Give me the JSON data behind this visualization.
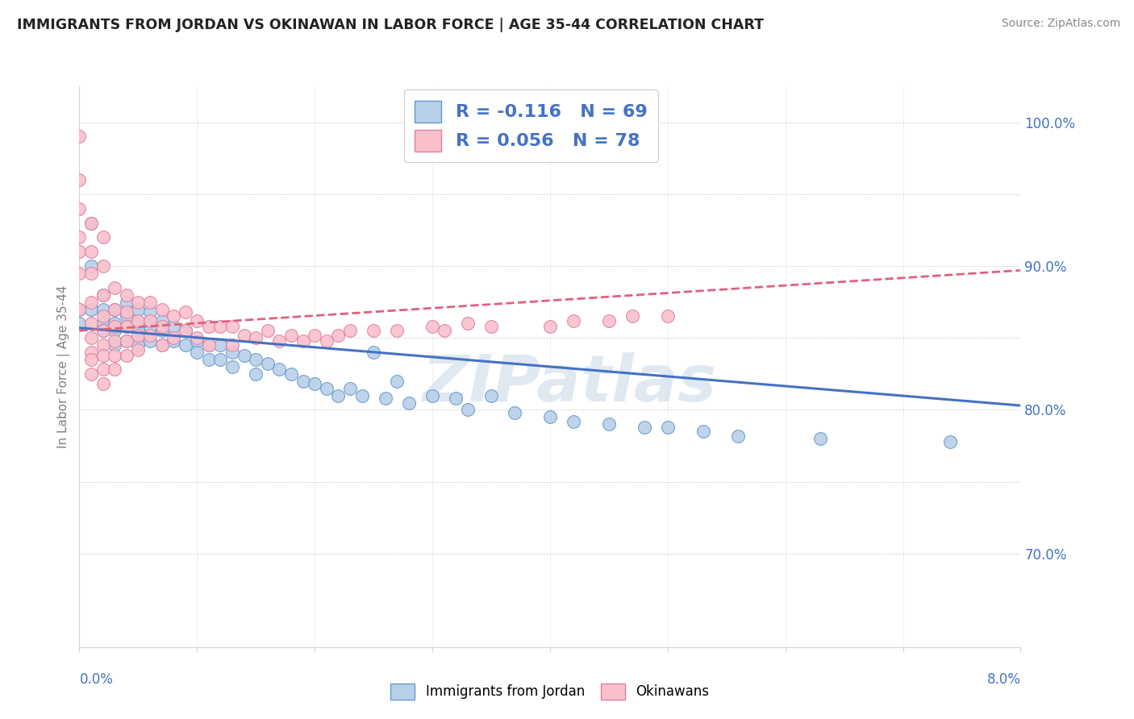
{
  "title": "IMMIGRANTS FROM JORDAN VS OKINAWAN IN LABOR FORCE | AGE 35-44 CORRELATION CHART",
  "source": "Source: ZipAtlas.com",
  "ylabel": "In Labor Force | Age 35-44",
  "watermark": "ZIPatlas",
  "legend_R1": "-0.116",
  "legend_N1": "69",
  "legend_R2": "0.056",
  "legend_N2": "78",
  "blue_color": "#b8d0e8",
  "blue_edge_color": "#6699cc",
  "blue_line_color": "#4472c4",
  "pink_color": "#f9c0cc",
  "pink_edge_color": "#e080a0",
  "pink_line_color": "#e06080",
  "xlim": [
    0.0,
    0.08
  ],
  "ylim": [
    0.635,
    1.025
  ],
  "y_tick_vals": [
    0.7,
    0.8,
    0.9,
    1.0
  ],
  "y_tick_labels": [
    "70.0%",
    "80.0%",
    "90.0%",
    "100.0%"
  ],
  "blue_scatter_x": [
    0.0,
    0.0,
    0.001,
    0.001,
    0.001,
    0.002,
    0.002,
    0.002,
    0.002,
    0.003,
    0.003,
    0.003,
    0.003,
    0.004,
    0.004,
    0.004,
    0.004,
    0.005,
    0.005,
    0.005,
    0.005,
    0.006,
    0.006,
    0.006,
    0.007,
    0.007,
    0.007,
    0.008,
    0.008,
    0.009,
    0.009,
    0.01,
    0.01,
    0.011,
    0.011,
    0.012,
    0.012,
    0.013,
    0.013,
    0.014,
    0.015,
    0.015,
    0.016,
    0.017,
    0.018,
    0.019,
    0.02,
    0.021,
    0.022,
    0.023,
    0.024,
    0.025,
    0.026,
    0.027,
    0.028,
    0.03,
    0.032,
    0.033,
    0.035,
    0.037,
    0.04,
    0.042,
    0.045,
    0.048,
    0.05,
    0.053,
    0.056,
    0.063,
    0.074
  ],
  "blue_scatter_y": [
    0.87,
    0.86,
    0.93,
    0.9,
    0.87,
    0.88,
    0.87,
    0.86,
    0.855,
    0.87,
    0.86,
    0.855,
    0.845,
    0.875,
    0.865,
    0.858,
    0.848,
    0.87,
    0.86,
    0.855,
    0.845,
    0.868,
    0.858,
    0.848,
    0.862,
    0.855,
    0.845,
    0.858,
    0.848,
    0.855,
    0.845,
    0.848,
    0.84,
    0.845,
    0.835,
    0.845,
    0.835,
    0.84,
    0.83,
    0.838,
    0.835,
    0.825,
    0.832,
    0.828,
    0.825,
    0.82,
    0.818,
    0.815,
    0.81,
    0.815,
    0.81,
    0.84,
    0.808,
    0.82,
    0.805,
    0.81,
    0.808,
    0.8,
    0.81,
    0.798,
    0.795,
    0.792,
    0.79,
    0.788,
    0.788,
    0.785,
    0.782,
    0.78,
    0.778
  ],
  "pink_scatter_x": [
    0.0,
    0.0,
    0.0,
    0.0,
    0.0,
    0.0,
    0.0,
    0.001,
    0.001,
    0.001,
    0.001,
    0.001,
    0.001,
    0.001,
    0.001,
    0.001,
    0.002,
    0.002,
    0.002,
    0.002,
    0.002,
    0.002,
    0.002,
    0.002,
    0.002,
    0.003,
    0.003,
    0.003,
    0.003,
    0.003,
    0.003,
    0.004,
    0.004,
    0.004,
    0.004,
    0.004,
    0.005,
    0.005,
    0.005,
    0.005,
    0.006,
    0.006,
    0.006,
    0.007,
    0.007,
    0.007,
    0.008,
    0.008,
    0.009,
    0.009,
    0.01,
    0.01,
    0.011,
    0.011,
    0.012,
    0.013,
    0.013,
    0.014,
    0.015,
    0.016,
    0.017,
    0.018,
    0.019,
    0.02,
    0.021,
    0.022,
    0.023,
    0.025,
    0.027,
    0.03,
    0.031,
    0.033,
    0.035,
    0.04,
    0.042,
    0.045,
    0.047,
    0.05
  ],
  "pink_scatter_y": [
    0.99,
    0.96,
    0.94,
    0.92,
    0.91,
    0.895,
    0.87,
    0.93,
    0.91,
    0.895,
    0.875,
    0.86,
    0.85,
    0.84,
    0.835,
    0.825,
    0.92,
    0.9,
    0.88,
    0.865,
    0.855,
    0.845,
    0.838,
    0.828,
    0.818,
    0.885,
    0.87,
    0.858,
    0.848,
    0.838,
    0.828,
    0.88,
    0.868,
    0.858,
    0.848,
    0.838,
    0.875,
    0.862,
    0.852,
    0.842,
    0.875,
    0.862,
    0.852,
    0.87,
    0.858,
    0.845,
    0.865,
    0.85,
    0.868,
    0.855,
    0.862,
    0.85,
    0.858,
    0.845,
    0.858,
    0.858,
    0.845,
    0.852,
    0.85,
    0.855,
    0.848,
    0.852,
    0.848,
    0.852,
    0.848,
    0.852,
    0.855,
    0.855,
    0.855,
    0.858,
    0.855,
    0.86,
    0.858,
    0.858,
    0.862,
    0.862,
    0.865,
    0.865
  ]
}
